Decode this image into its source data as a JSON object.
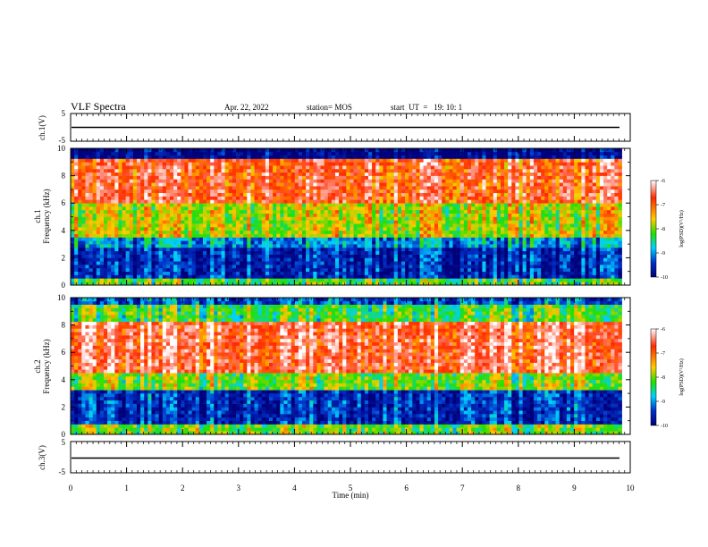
{
  "header": {
    "title": "VLF Spectra",
    "date": "Apr. 22, 2022",
    "station": "station= MOS",
    "start": "start  UT  =   19: 10: 1"
  },
  "panels": {
    "ch1v_label": "ch.1(V)",
    "ch1_label": "ch.1",
    "ch2_label": "ch.2",
    "ch3v_label": "ch.3(V)",
    "freq_label": "Frequency (kHz)"
  },
  "colorbar": {
    "label": "log(PSD)(V²/Hz)",
    "ticks": [
      "-6",
      "-7",
      "-8",
      "-9",
      "-10"
    ]
  },
  "chart_data": {
    "type": "heatmap",
    "title": "VLF Spectra",
    "xlabel": "Time (min)",
    "xlim": [
      0,
      10
    ],
    "x_ticks": [
      "0",
      "1",
      "2",
      "3",
      "4",
      "5",
      "6",
      "7",
      "8",
      "9",
      "10"
    ],
    "voltage_panels": [
      {
        "name": "ch.1(V)",
        "ylim": [
          -5,
          5
        ],
        "y_ticks": [
          "5",
          "-5"
        ],
        "level": 0
      },
      {
        "name": "ch.3(V)",
        "ylim": [
          -5,
          5
        ],
        "y_ticks": [
          "5",
          "-5"
        ],
        "level": -1
      }
    ],
    "spectrogram_panels": [
      {
        "name": "ch.1",
        "ylabel": "Frequency (kHz)",
        "ylim": [
          0,
          10
        ],
        "y_ticks": [
          "0",
          "2",
          "4",
          "6",
          "8",
          "10"
        ],
        "data_end_min": 9.85,
        "band_logpsd": [
          {
            "freq_khz": [
              9.2,
              10
            ],
            "log_psd": -10
          },
          {
            "freq_khz": [
              6.0,
              9.2
            ],
            "log_psd": -6.8
          },
          {
            "freq_khz": [
              3.5,
              6.0
            ],
            "log_psd": -7.8
          },
          {
            "freq_khz": [
              2.8,
              3.5
            ],
            "log_psd": -9.0
          },
          {
            "freq_khz": [
              0.6,
              2.8
            ],
            "log_psd": -9.6
          },
          {
            "freq_khz": [
              0,
              0.6
            ],
            "log_psd": -8.2
          }
        ]
      },
      {
        "name": "ch.2",
        "ylabel": "Frequency (kHz)",
        "ylim": [
          0,
          10
        ],
        "y_ticks": [
          "0",
          "2",
          "4",
          "6",
          "8",
          "10"
        ],
        "data_end_min": 9.85,
        "band_logpsd": [
          {
            "freq_khz": [
              9.4,
              10
            ],
            "log_psd": -9.3
          },
          {
            "freq_khz": [
              8.2,
              9.4
            ],
            "log_psd": -8.2
          },
          {
            "freq_khz": [
              4.5,
              8.2
            ],
            "log_psd": -6.6
          },
          {
            "freq_khz": [
              3.2,
              4.5
            ],
            "log_psd": -8.0
          },
          {
            "freq_khz": [
              0.8,
              3.2
            ],
            "log_psd": -9.5
          },
          {
            "freq_khz": [
              0,
              0.8
            ],
            "log_psd": -8.0
          }
        ]
      }
    ],
    "colorbar": {
      "label": "log(PSD)(V²/Hz)",
      "range": [
        -10,
        -6
      ],
      "ticks": [
        -6,
        -7,
        -8,
        -9,
        -10
      ],
      "colors": [
        "#ffffff",
        "#ff2a00",
        "#ffcc00",
        "#22e000",
        "#00d0ff",
        "#0030c8",
        "#00007a"
      ]
    }
  }
}
